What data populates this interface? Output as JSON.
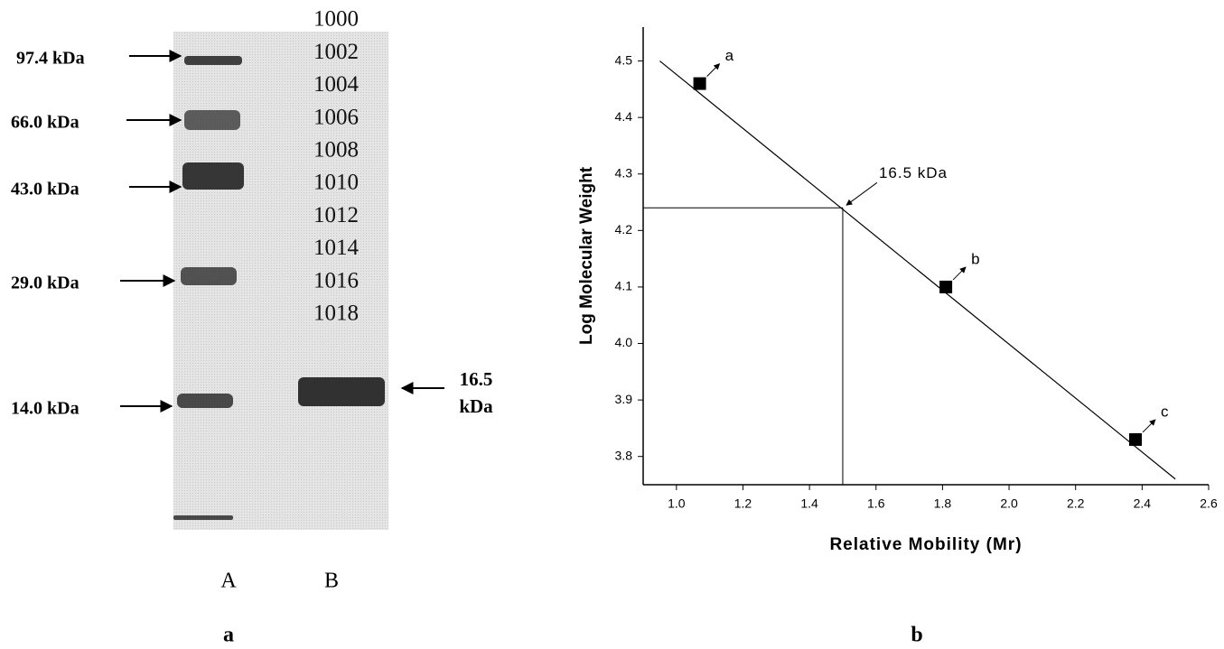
{
  "gel": {
    "markers": [
      "97.4 kDa",
      "66.0 kDa",
      "43.0 kDa",
      "29.0 kDa",
      "14.0 kDa"
    ],
    "overlay_numbers": [
      "1000",
      "1002",
      "1004",
      "1006",
      "1008",
      "1010",
      "1012",
      "1014",
      "1016",
      "1018"
    ],
    "sample_label": [
      "16.5",
      "kDa"
    ],
    "lanes": [
      "A",
      "B"
    ],
    "panel_label": "a"
  },
  "chart_data": {
    "type": "scatter",
    "panel_label": "b",
    "xlabel": "Relative Mobility (Mr)",
    "ylabel": "Log Molecular Weight",
    "x": [
      1.07,
      1.81,
      2.38
    ],
    "values": [
      4.46,
      4.1,
      3.83
    ],
    "point_labels": [
      "a",
      "b",
      "c"
    ],
    "color": "#000000",
    "fit": {
      "x": [
        0.95,
        2.5
      ],
      "values": [
        4.5,
        3.76
      ]
    },
    "guide": {
      "x": 1.5,
      "y": 4.24
    },
    "annotation": "16.5 kDa",
    "xlim": [
      0.9,
      2.6
    ],
    "xticks": [
      {
        "value": 1,
        "label": "1.0"
      },
      1.2,
      1.4,
      1.6,
      1.8,
      {
        "value": 2,
        "label": "2.0"
      },
      2.2,
      2.4,
      2.6
    ],
    "ylim": [
      3.75,
      4.56
    ],
    "yticks": [
      3.8,
      3.9,
      {
        "value": 4,
        "label": "4.0"
      },
      4.1,
      4.2,
      4.3,
      4.4,
      4.5
    ]
  }
}
